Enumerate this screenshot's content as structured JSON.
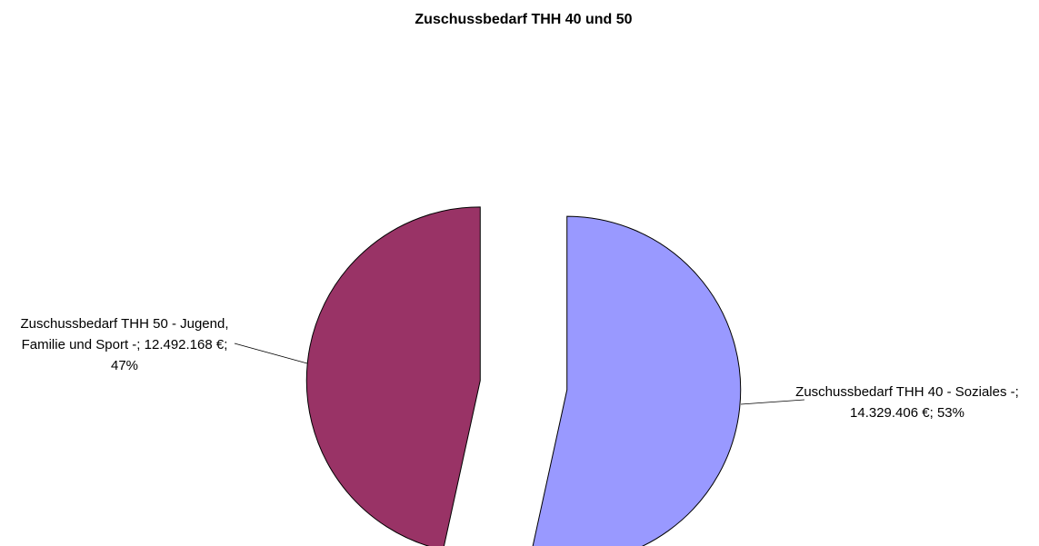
{
  "chart_data": {
    "type": "pie",
    "title": "Zuschussbedarf THH 40 und 50",
    "categories": [
      "Zuschussbedarf THH 40 - Soziales -",
      "Zuschussbedarf THH 50 - Jugend, Familie und Sport -"
    ],
    "values": [
      14329406,
      12492168
    ],
    "value_labels": [
      "14.329.406 €",
      "12.492.168 €"
    ],
    "percentages": [
      53,
      47
    ],
    "percentage_labels": [
      "53%",
      "47%"
    ],
    "label_separator": "; ",
    "colors": [
      "#9999ff",
      "#993366"
    ],
    "exploded": true
  }
}
